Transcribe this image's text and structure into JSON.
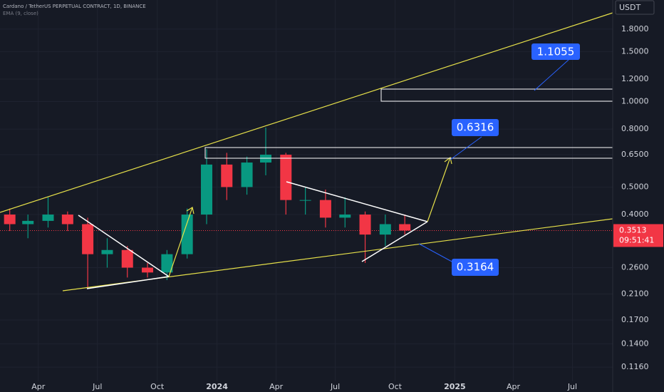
{
  "chart_data": {
    "type": "candlestick",
    "title": "Cardano / TetherUS PERPETUAL CONTRACT, 1D, BINANCE",
    "subtitle": "EMA (9, close)",
    "currency": "USDT",
    "log_scale": true,
    "grid": true,
    "up_color": "#089981",
    "down_color": "#f23645",
    "x": [
      "2023-02",
      "2023-03",
      "2023-04",
      "2023-05",
      "2023-06",
      "2023-07",
      "2023-08",
      "2023-09",
      "2023-10",
      "2023-11",
      "2023-12",
      "2024-01",
      "2024-02",
      "2024-03",
      "2024-04",
      "2024-05",
      "2024-06",
      "2024-07",
      "2024-08",
      "2024-09",
      "2024-10"
    ],
    "open": [
      0.4,
      0.37,
      0.38,
      0.4,
      0.37,
      0.29,
      0.3,
      0.26,
      0.25,
      0.29,
      0.4,
      0.6,
      0.5,
      0.61,
      0.65,
      0.45,
      0.45,
      0.39,
      0.4,
      0.34,
      0.37
    ],
    "high": [
      0.42,
      0.4,
      0.46,
      0.41,
      0.39,
      0.33,
      0.31,
      0.27,
      0.3,
      0.42,
      0.68,
      0.66,
      0.64,
      0.81,
      0.66,
      0.5,
      0.49,
      0.46,
      0.41,
      0.4,
      0.4
    ],
    "low": [
      0.35,
      0.33,
      0.36,
      0.35,
      0.22,
      0.26,
      0.24,
      0.24,
      0.235,
      0.28,
      0.37,
      0.45,
      0.47,
      0.55,
      0.4,
      0.4,
      0.36,
      0.36,
      0.27,
      0.31,
      0.34
    ],
    "close": [
      0.37,
      0.38,
      0.4,
      0.37,
      0.29,
      0.3,
      0.26,
      0.25,
      0.29,
      0.4,
      0.6,
      0.5,
      0.61,
      0.65,
      0.45,
      0.45,
      0.39,
      0.4,
      0.34,
      0.37,
      0.3513
    ],
    "xlim": [
      "2023-02",
      "2025-09"
    ],
    "xticks": [
      {
        "value": "2023-04",
        "label": "Apr"
      },
      {
        "value": "2023-07",
        "label": "Jul"
      },
      {
        "value": "2023-10",
        "label": "Oct"
      },
      {
        "value": "2024-01",
        "label": "2024"
      },
      {
        "value": "2024-04",
        "label": "Apr"
      },
      {
        "value": "2024-07",
        "label": "Jul"
      },
      {
        "value": "2024-10",
        "label": "Oct"
      },
      {
        "value": "2025-01",
        "label": "2025"
      },
      {
        "value": "2025-04",
        "label": "Apr"
      },
      {
        "value": "2025-07",
        "label": "Jul"
      }
    ],
    "ylim": [
      0.1034,
      2.28
    ],
    "yticks": [
      {
        "value": 1.8,
        "label": "1.8000"
      },
      {
        "value": 1.5,
        "label": "1.5000"
      },
      {
        "value": 1.2,
        "label": "1.2000"
      },
      {
        "value": 1.0,
        "label": "1.0000"
      },
      {
        "value": 0.8,
        "label": "0.8000"
      },
      {
        "value": 0.65,
        "label": "0.6500"
      },
      {
        "value": 0.5,
        "label": "0.5000"
      },
      {
        "value": 0.4,
        "label": "0.4000"
      },
      {
        "value": 0.26,
        "label": "0.2600"
      },
      {
        "value": 0.21,
        "label": "0.2100"
      },
      {
        "value": 0.17,
        "label": "0.1700"
      },
      {
        "value": 0.14,
        "label": "0.1400"
      },
      {
        "value": 0.116,
        "label": "0.1160"
      }
    ],
    "last_price": 0.3513,
    "countdown": "09:51:41",
    "annotations": [
      "1.1055",
      "0.6316",
      "0.3164"
    ]
  }
}
